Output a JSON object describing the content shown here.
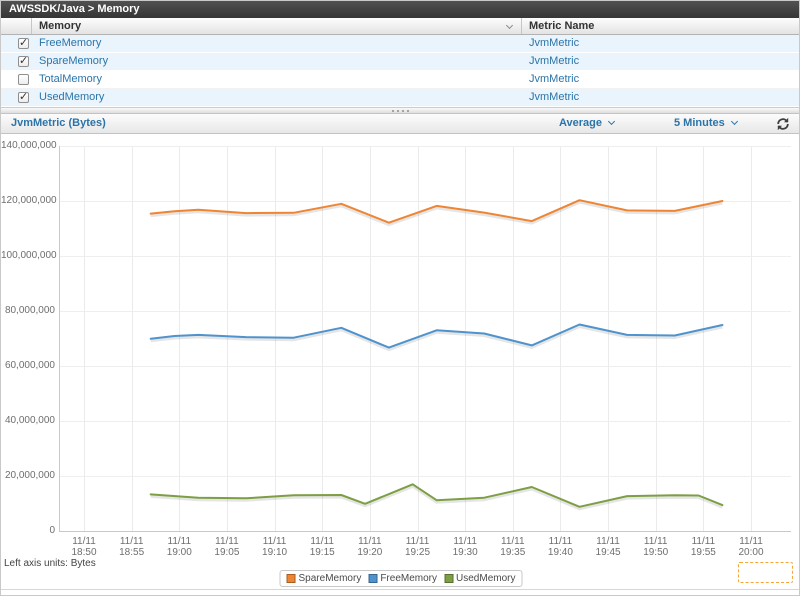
{
  "breadcrumb": {
    "title": "AWSSDK/Java > Memory"
  },
  "icons": {
    "check": "✓",
    "sort": "chevron-down-icon",
    "refresh": "refresh-icon"
  },
  "table": {
    "columns": {
      "memory": "Memory",
      "metric_name": "Metric Name"
    },
    "rows": [
      {
        "memory": "FreeMemory",
        "metric_name": "JvmMetric",
        "checked": true
      },
      {
        "memory": "SpareMemory",
        "metric_name": "JvmMetric",
        "checked": true
      },
      {
        "memory": "TotalMemory",
        "metric_name": "JvmMetric",
        "checked": false
      },
      {
        "memory": "UsedMemory",
        "metric_name": "JvmMetric",
        "checked": true
      }
    ]
  },
  "chart_header": {
    "title": "JvmMetric (Bytes)",
    "statistic": "Average",
    "period": "5 Minutes"
  },
  "footer": {
    "units_label": "Left axis units: Bytes"
  },
  "colors": {
    "link": "#2b74a9"
  },
  "chart_data": {
    "type": "line",
    "title": "JvmMetric (Bytes)",
    "ylabel": "Bytes",
    "y_axis": {
      "min": 0,
      "max": 140000000,
      "ticks": [
        0,
        20000000,
        40000000,
        60000000,
        80000000,
        100000000,
        120000000,
        140000000
      ]
    },
    "x_axis": {
      "date": "11/11",
      "tick_interval_minutes": 5,
      "tick_times": [
        "18:50",
        "18:55",
        "19:00",
        "19:05",
        "19:10",
        "19:15",
        "19:20",
        "19:25",
        "19:30",
        "19:35",
        "19:40",
        "19:45",
        "19:50",
        "19:55",
        "20:00"
      ]
    },
    "legend_position": "bottom",
    "series": [
      {
        "name": "SpareMemory",
        "color": "#ef8532",
        "points": [
          [
            "18:57",
            115400000
          ],
          [
            "18:59:30",
            116300000
          ],
          [
            "19:02",
            116800000
          ],
          [
            "19:07",
            115600000
          ],
          [
            "19:12",
            115700000
          ],
          [
            "19:17",
            119000000
          ],
          [
            "19:22",
            112100000
          ],
          [
            "19:27",
            118200000
          ],
          [
            "19:32",
            115800000
          ],
          [
            "19:37",
            112700000
          ],
          [
            "19:42",
            120300000
          ],
          [
            "19:47",
            116600000
          ],
          [
            "19:52",
            116400000
          ],
          [
            "19:57",
            120000000
          ]
        ]
      },
      {
        "name": "FreeMemory",
        "color": "#4f93ce",
        "points": [
          [
            "18:57",
            69900000
          ],
          [
            "18:59:30",
            70900000
          ],
          [
            "19:02",
            71300000
          ],
          [
            "19:07",
            70500000
          ],
          [
            "19:12",
            70300000
          ],
          [
            "19:17",
            73900000
          ],
          [
            "19:22",
            66700000
          ],
          [
            "19:27",
            73000000
          ],
          [
            "19:32",
            71800000
          ],
          [
            "19:37",
            67500000
          ],
          [
            "19:42",
            75100000
          ],
          [
            "19:47",
            71300000
          ],
          [
            "19:52",
            71100000
          ],
          [
            "19:57",
            74900000
          ]
        ]
      },
      {
        "name": "UsedMemory",
        "color": "#7d9f44",
        "points": [
          [
            "18:57",
            13300000
          ],
          [
            "19:02",
            12100000
          ],
          [
            "19:07",
            11900000
          ],
          [
            "19:12",
            13000000
          ],
          [
            "19:17",
            13100000
          ],
          [
            "19:19:30",
            9900000
          ],
          [
            "19:24:30",
            17000000
          ],
          [
            "19:27",
            11200000
          ],
          [
            "19:32",
            12100000
          ],
          [
            "19:37",
            16000000
          ],
          [
            "19:42",
            8800000
          ],
          [
            "19:47",
            12700000
          ],
          [
            "19:52",
            13000000
          ],
          [
            "19:54:30",
            12900000
          ],
          [
            "19:57",
            9400000
          ]
        ]
      }
    ]
  }
}
